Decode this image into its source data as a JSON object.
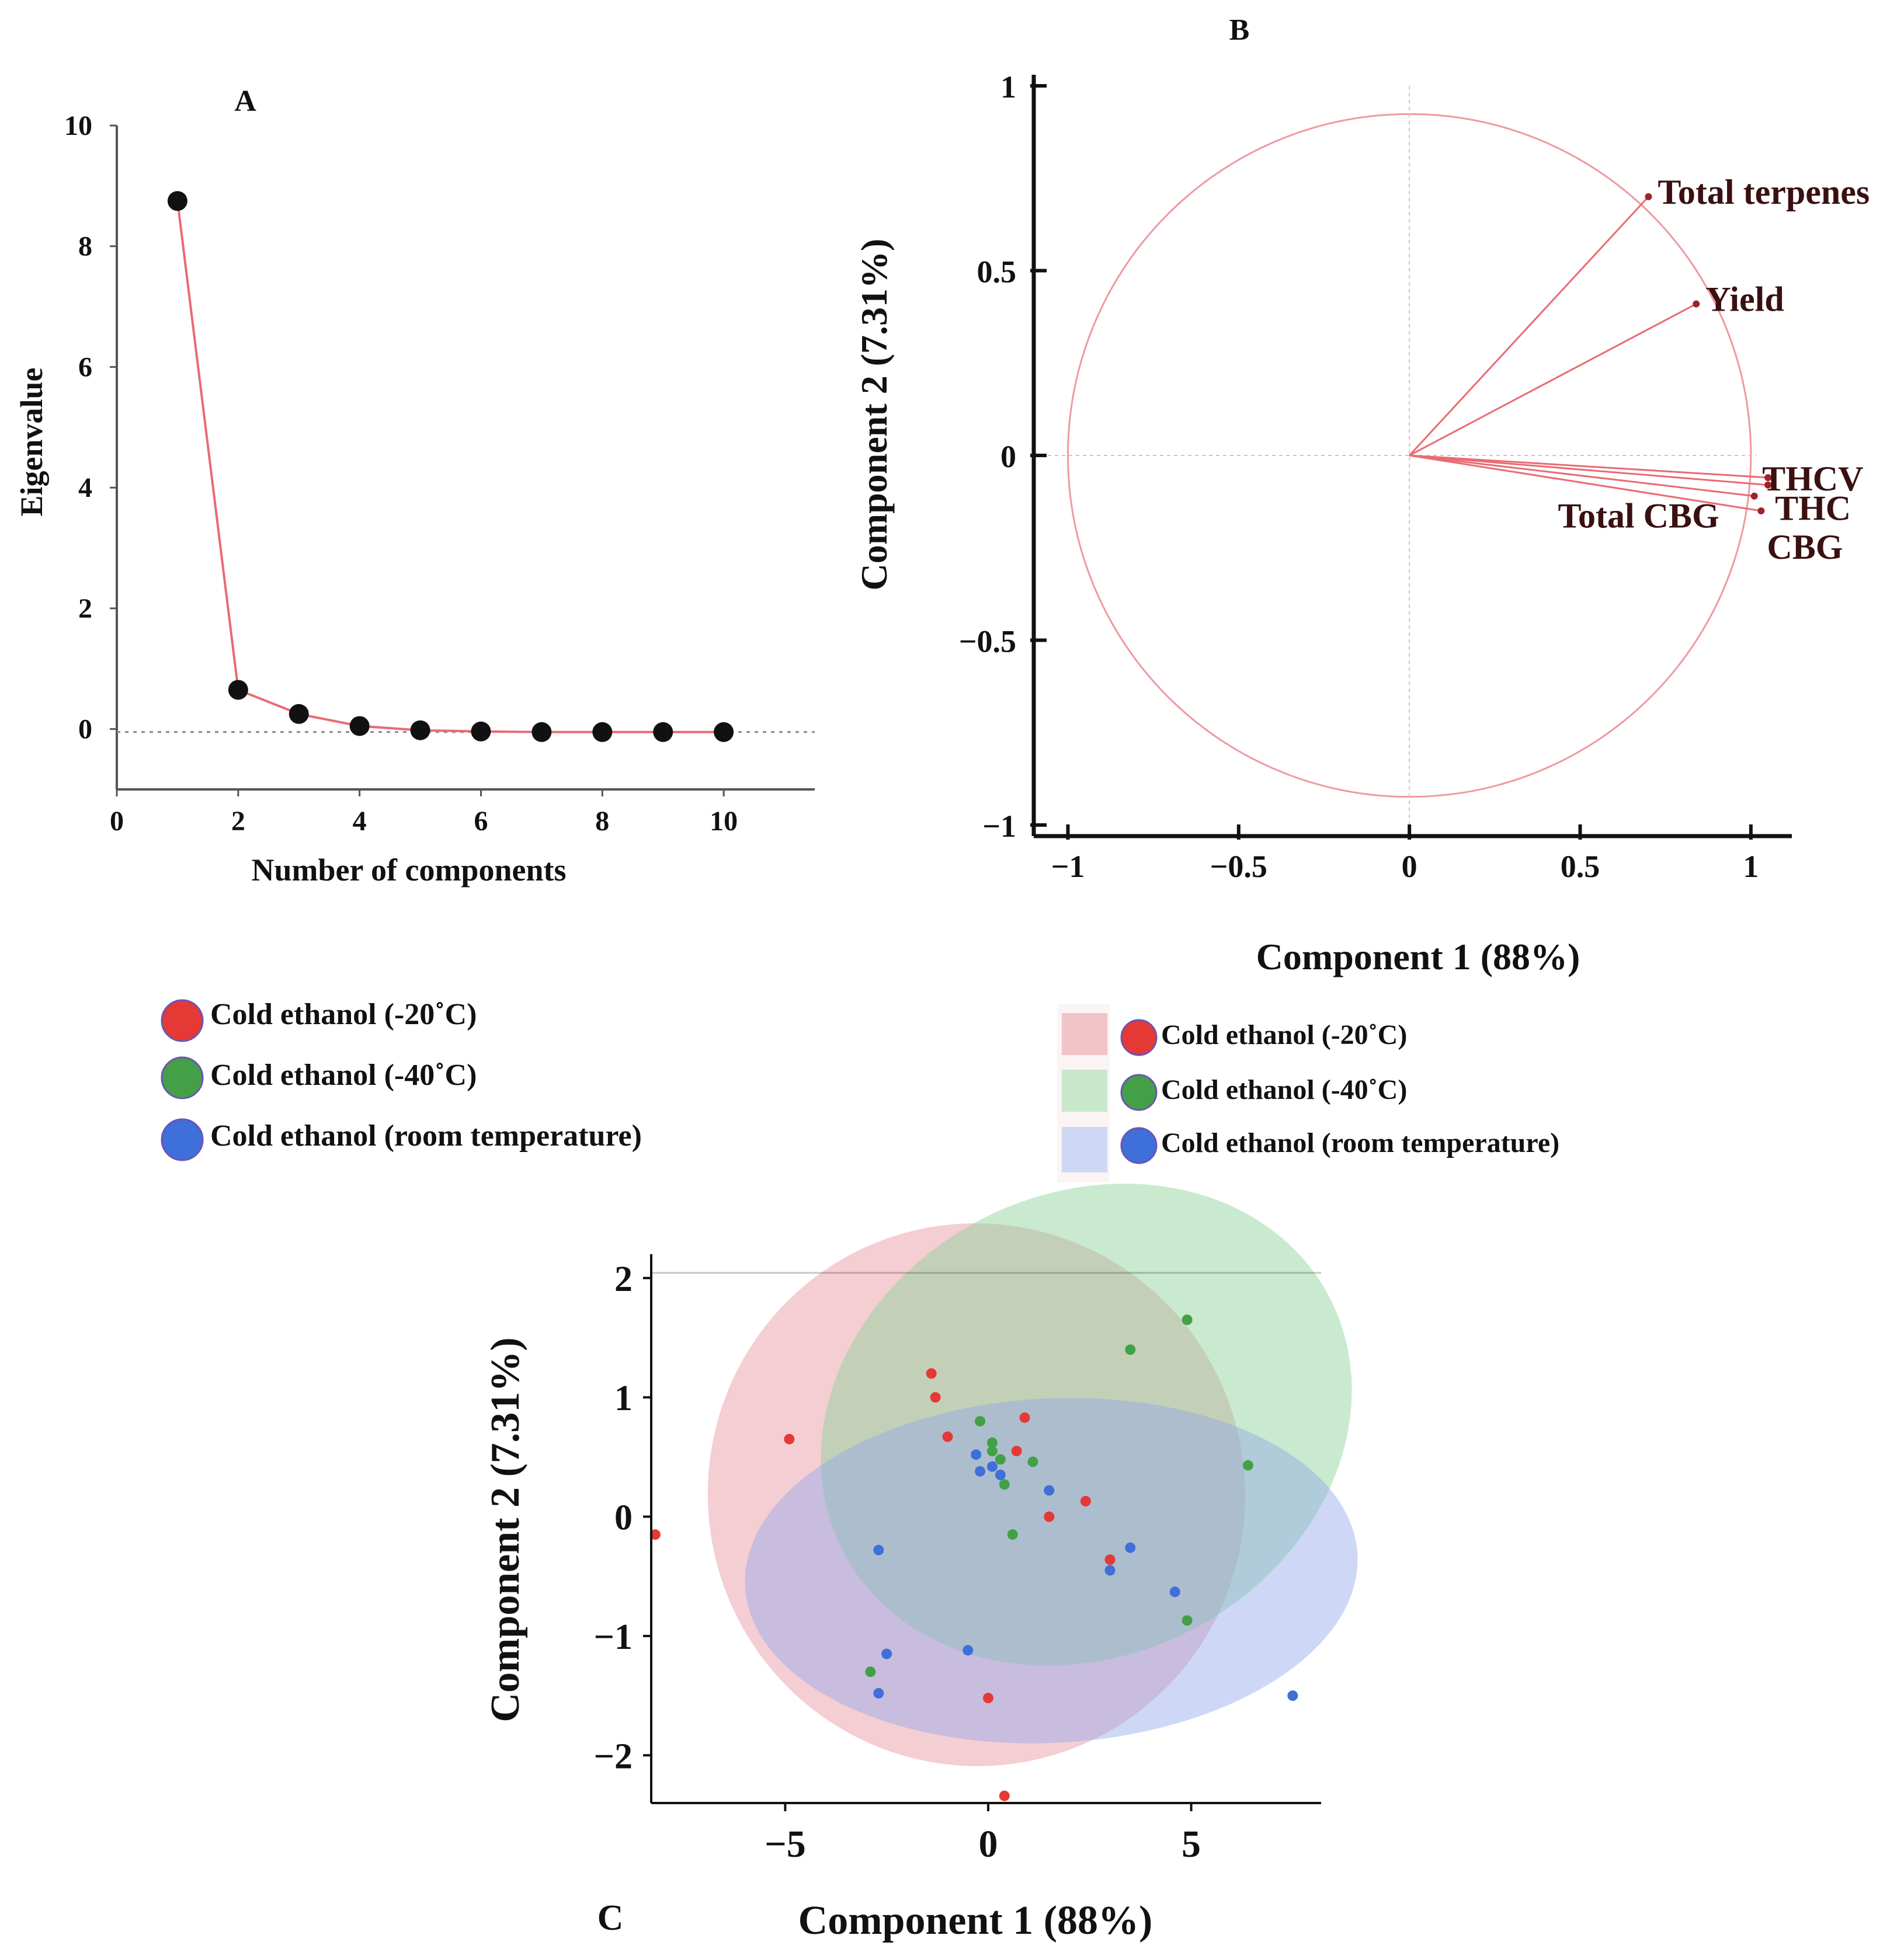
{
  "colors": {
    "red": "#e53935",
    "green": "#43a047",
    "blue": "#3f6fd8",
    "line": "#ea6a72",
    "axis": "#111111"
  },
  "legends": {
    "left": [
      {
        "label": "Cold ethanol (-20˚C)",
        "color": "#e53935"
      },
      {
        "label": "Cold ethanol (-40˚C)",
        "color": "#43a047"
      },
      {
        "label": "Cold ethanol (room temperature)",
        "color": "#3f6fd8"
      }
    ],
    "right": [
      {
        "label": "Cold ethanol (-20˚C)",
        "color": "#e53935",
        "swatch": "#f0c4c8"
      },
      {
        "label": "Cold ethanol (-40˚C)",
        "color": "#43a047",
        "swatch": "#c8e8cc"
      },
      {
        "label": "Cold ethanol (room temperature)",
        "color": "#3f6fd8",
        "swatch": "#cdd8f4"
      }
    ]
  },
  "chart_data": [
    {
      "panel": "A",
      "type": "line",
      "title": "A",
      "xlabel": "Number of components",
      "ylabel": "Eigenvalue",
      "x": [
        1,
        2,
        3,
        4,
        5,
        6,
        7,
        8,
        9,
        10
      ],
      "y": [
        8.75,
        0.65,
        0.25,
        0.05,
        -0.02,
        -0.04,
        -0.05,
        -0.05,
        -0.05,
        -0.05
      ],
      "xlim": [
        0,
        11.5
      ],
      "ylim": [
        -1,
        10
      ],
      "xticks": [
        "0",
        "2",
        "4",
        "6",
        "8",
        "10"
      ],
      "yticks": [
        "0",
        "2",
        "4",
        "6",
        "8",
        "10"
      ],
      "reference_line_y": -0.05,
      "grid": false
    },
    {
      "panel": "B",
      "type": "scatter",
      "subtype": "correlation-circle",
      "title": "B",
      "xlabel": "Component 1 (88%)",
      "ylabel": "Component 2 (7.31%)",
      "xlim": [
        -1.1,
        1.12
      ],
      "ylim": [
        -1.03,
        1.03
      ],
      "xticks": [
        "−1",
        "−0.5",
        "0",
        "0.5",
        "1"
      ],
      "yticks": [
        "−1",
        "−0.5",
        "0",
        "0.5",
        "1"
      ],
      "variables": [
        {
          "name": "Total terpenes",
          "x": 0.7,
          "y": 0.7
        },
        {
          "name": "Yield",
          "x": 0.84,
          "y": 0.41
        },
        {
          "name": "THCV",
          "x": 1.05,
          "y": -0.06
        },
        {
          "name": "THC",
          "x": 1.05,
          "y": -0.08
        },
        {
          "name": "Total CBG",
          "x": 1.01,
          "y": -0.11
        },
        {
          "name": "CBG",
          "x": 1.03,
          "y": -0.15
        }
      ]
    },
    {
      "panel": "C",
      "type": "scatter",
      "title": "C",
      "xlabel": "Component 1 (88%)",
      "ylabel": "Component 2 (7.31%)",
      "xlim": [
        -8.3,
        8.2
      ],
      "ylim": [
        -2.4,
        2.2
      ],
      "xticks": [
        "−5",
        "0",
        "5"
      ],
      "yticks": [
        "−2",
        "−1",
        "0",
        "1",
        "2"
      ],
      "series": [
        {
          "name": "Cold ethanol (-20˚C)",
          "color": "#e53935",
          "points": [
            [
              -8.2,
              -0.15
            ],
            [
              -4.9,
              0.65
            ],
            [
              -1.4,
              1.2
            ],
            [
              -1.3,
              1.0
            ],
            [
              -1.0,
              0.67
            ],
            [
              0.7,
              0.55
            ],
            [
              0.9,
              0.83
            ],
            [
              1.5,
              0.0
            ],
            [
              2.4,
              0.13
            ],
            [
              3.0,
              -0.36
            ],
            [
              0.0,
              -1.52
            ],
            [
              0.4,
              -2.34
            ]
          ]
        },
        {
          "name": "Cold ethanol (-40˚C)",
          "color": "#43a047",
          "points": [
            [
              4.9,
              1.65
            ],
            [
              3.5,
              1.4
            ],
            [
              6.4,
              0.43
            ],
            [
              -0.2,
              0.8
            ],
            [
              0.1,
              0.62
            ],
            [
              0.3,
              0.48
            ],
            [
              1.1,
              0.46
            ],
            [
              0.4,
              0.27
            ],
            [
              0.6,
              -0.15
            ],
            [
              4.9,
              -0.87
            ],
            [
              -2.9,
              -1.3
            ],
            [
              0.1,
              0.55
            ]
          ]
        },
        {
          "name": "Cold ethanol (room temperature)",
          "color": "#3f6fd8",
          "points": [
            [
              -0.3,
              0.52
            ],
            [
              -0.2,
              0.38
            ],
            [
              0.1,
              0.42
            ],
            [
              0.3,
              0.35
            ],
            [
              1.5,
              0.22
            ],
            [
              -2.7,
              -0.28
            ],
            [
              3.0,
              -0.45
            ],
            [
              3.5,
              -0.26
            ],
            [
              4.6,
              -0.63
            ],
            [
              -2.5,
              -1.15
            ],
            [
              -0.5,
              -1.12
            ],
            [
              -2.7,
              -1.48
            ],
            [
              7.5,
              -1.5
            ]
          ]
        }
      ],
      "confidence_ellipses": true
    }
  ]
}
